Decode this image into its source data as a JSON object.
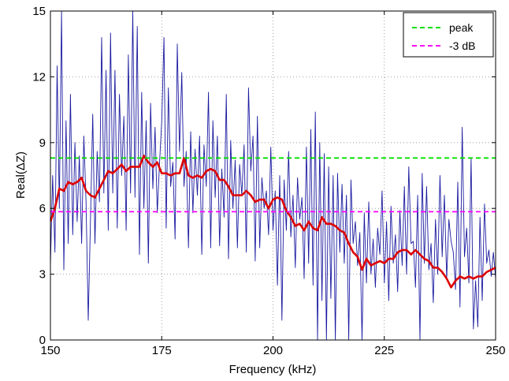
{
  "chart_data": {
    "type": "line",
    "title": "",
    "xlabel": "Frequency (kHz)",
    "ylabel": "Real(ΔZ)",
    "xlim": [
      150,
      250
    ],
    "ylim": [
      0,
      15
    ],
    "xticks": [
      150,
      175,
      200,
      225,
      250
    ],
    "yticks": [
      0,
      3,
      6,
      9,
      12,
      15
    ],
    "xtick_labels": [
      "150",
      "175",
      "200",
      "225",
      "250"
    ],
    "ytick_labels": [
      "0",
      "3",
      "6",
      "9",
      "12",
      "15"
    ],
    "grid": true,
    "legend_position": "top-right",
    "legend": [
      {
        "label": "peak",
        "color": "#00e000",
        "style": "dashed"
      },
      {
        "label": "-3 dB",
        "color": "#ff00ff",
        "style": "dashed"
      }
    ],
    "series": [
      {
        "role": "raw",
        "color": "#1a1aa0",
        "x": [
          150.0,
          150.5,
          151.0,
          151.5,
          152.0,
          152.5,
          153.0,
          153.5,
          154.0,
          154.5,
          155.0,
          155.5,
          156.0,
          156.5,
          157.0,
          157.5,
          158.0,
          158.5,
          159.0,
          159.5,
          160.0,
          160.5,
          161.0,
          161.5,
          162.0,
          162.5,
          163.0,
          163.5,
          164.0,
          164.5,
          165.0,
          165.5,
          166.0,
          166.5,
          167.0,
          167.5,
          168.0,
          168.5,
          169.0,
          169.5,
          170.0,
          170.5,
          171.0,
          171.5,
          172.0,
          172.5,
          173.0,
          173.5,
          174.0,
          174.5,
          175.0,
          175.5,
          176.0,
          176.5,
          177.0,
          177.5,
          178.0,
          178.5,
          179.0,
          179.5,
          180.0,
          180.5,
          181.0,
          181.5,
          182.0,
          182.5,
          183.0,
          183.5,
          184.0,
          184.5,
          185.0,
          185.5,
          186.0,
          186.5,
          187.0,
          187.5,
          188.0,
          188.5,
          189.0,
          189.5,
          190.0,
          190.5,
          191.0,
          191.5,
          192.0,
          192.5,
          193.0,
          193.5,
          194.0,
          194.5,
          195.0,
          195.5,
          196.0,
          196.5,
          197.0,
          197.5,
          198.0,
          198.5,
          199.0,
          199.5,
          200.0,
          200.5,
          201.0,
          201.5,
          202.0,
          202.5,
          203.0,
          203.5,
          204.0,
          204.5,
          205.0,
          205.5,
          206.0,
          206.5,
          207.0,
          207.5,
          208.0,
          208.5,
          209.0,
          209.5,
          210.0,
          210.5,
          211.0,
          211.5,
          212.0,
          212.5,
          213.0,
          213.5,
          214.0,
          214.5,
          215.0,
          215.5,
          216.0,
          216.5,
          217.0,
          217.5,
          218.0,
          218.5,
          219.0,
          219.5,
          220.0,
          220.5,
          221.0,
          221.5,
          222.0,
          222.5,
          223.0,
          223.5,
          224.0,
          224.5,
          225.0,
          225.5,
          226.0,
          226.5,
          227.0,
          227.5,
          228.0,
          228.5,
          229.0,
          229.5,
          230.0,
          230.5,
          231.0,
          231.5,
          232.0,
          232.5,
          233.0,
          233.5,
          234.0,
          234.5,
          235.0,
          235.5,
          236.0,
          236.5,
          237.0,
          237.5,
          238.0,
          238.5,
          239.0,
          239.5,
          240.0,
          240.5,
          241.0,
          241.5,
          242.0,
          242.5,
          243.0,
          243.5,
          244.0,
          244.5,
          245.0,
          245.5,
          246.0,
          246.5,
          247.0,
          247.5,
          248.0,
          248.5,
          249.0,
          249.5,
          250.0
        ],
        "y": [
          3.4,
          7.5,
          4.0,
          12.5,
          6.0,
          15.0,
          3.2,
          10.0,
          4.4,
          11.2,
          4.8,
          9.0,
          5.4,
          8.4,
          4.4,
          9.3,
          6.3,
          0.9,
          5.4,
          10.3,
          4.4,
          8.6,
          6.3,
          13.8,
          6.7,
          12.3,
          5.0,
          14.0,
          6.7,
          12.3,
          5.1,
          11.2,
          7.5,
          10.2,
          5.0,
          13.0,
          6.7,
          15.0,
          6.5,
          14.3,
          3.9,
          11.3,
          6.0,
          10.0,
          3.5,
          10.8,
          6.9,
          9.7,
          5.8,
          8.0,
          10.0,
          13.8,
          5.1,
          11.5,
          7.0,
          8.1,
          4.6,
          13.5,
          8.6,
          12.2,
          7.0,
          8.6,
          4.2,
          9.5,
          5.8,
          8.7,
          6.6,
          9.3,
          3.9,
          8.9,
          7.0,
          11.3,
          4.2,
          10.0,
          6.5,
          9.3,
          4.3,
          7.8,
          5.6,
          11.2,
          3.7,
          9.1,
          6.0,
          8.2,
          4.2,
          8.0,
          6.6,
          8.9,
          4.0,
          11.5,
          7.7,
          9.3,
          3.6,
          10.2,
          4.2,
          7.4,
          6.0,
          6.8,
          4.8,
          8.8,
          5.0,
          6.8,
          2.5,
          7.5,
          0.9,
          7.3,
          5.0,
          8.6,
          4.7,
          6.6,
          3.3,
          7.4,
          5.5,
          6.5,
          2.8,
          8.8,
          3.5,
          9.6,
          2.5,
          10.4,
          0.0,
          9.0,
          1.8,
          8.5,
          0.0,
          7.9,
          1.9,
          7.5,
          0.0,
          7.6,
          4.0,
          7.1,
          3.5,
          6.6,
          0.0,
          7.3,
          4.4,
          5.4,
          3.4,
          4.9,
          0.0,
          5.8,
          2.6,
          6.3,
          3.0,
          4.6,
          2.4,
          5.1,
          3.9,
          6.8,
          2.6,
          5.4,
          1.8,
          6.1,
          3.5,
          4.8,
          2.2,
          5.9,
          3.4,
          7.0,
          3.0,
          7.9,
          4.4,
          4.5,
          2.4,
          6.6,
          0.0,
          7.6,
          3.5,
          7.0,
          3.2,
          4.4,
          1.7,
          5.5,
          3.0,
          7.5,
          3.8,
          6.6,
          2.8,
          5.5,
          4.5,
          4.0,
          2.3,
          7.2,
          1.5,
          9.7,
          3.8,
          5.1,
          2.6,
          8.3,
          0.5,
          2.7,
          0.6,
          5.6,
          1.8,
          6.2,
          3.5,
          4.1,
          2.9,
          4.0,
          2.8
        ],
        "visible_shown": true
      },
      {
        "role": "smoothed",
        "color": "#dd0000",
        "x": [
          150,
          151,
          152,
          153,
          154,
          155,
          156,
          157,
          158,
          159,
          160,
          161,
          162,
          163,
          164,
          165,
          166,
          167,
          168,
          169,
          170,
          171,
          172,
          173,
          174,
          175,
          176,
          177,
          178,
          179,
          180,
          181,
          182,
          183,
          184,
          185,
          186,
          187,
          188,
          189,
          190,
          191,
          192,
          193,
          194,
          195,
          196,
          197,
          198,
          199,
          200,
          201,
          202,
          203,
          204,
          205,
          206,
          207,
          208,
          209,
          210,
          211,
          212,
          213,
          214,
          215,
          216,
          217,
          218,
          219,
          220,
          221,
          222,
          223,
          224,
          225,
          226,
          227,
          228,
          229,
          230,
          231,
          232,
          233,
          234,
          235,
          236,
          237,
          238,
          239,
          240,
          241,
          242,
          243,
          244,
          245,
          246,
          247,
          248,
          249,
          250
        ],
        "y": [
          5.4,
          6.0,
          6.9,
          6.8,
          7.2,
          7.1,
          7.2,
          7.4,
          6.8,
          6.6,
          6.5,
          6.9,
          7.3,
          7.7,
          7.6,
          7.8,
          8.0,
          7.7,
          7.9,
          7.9,
          7.9,
          8.4,
          8.1,
          7.9,
          8.1,
          7.6,
          7.6,
          7.5,
          7.6,
          7.6,
          8.3,
          7.5,
          7.4,
          7.5,
          7.4,
          7.7,
          7.8,
          7.7,
          7.3,
          7.3,
          7.0,
          6.6,
          6.6,
          6.6,
          6.8,
          6.6,
          6.3,
          6.4,
          6.4,
          6.0,
          6.4,
          6.5,
          6.4,
          5.9,
          5.6,
          5.2,
          5.3,
          5.0,
          5.4,
          5.1,
          5.0,
          5.6,
          5.3,
          5.3,
          5.2,
          5.0,
          4.9,
          4.4,
          4.0,
          3.8,
          3.2,
          3.7,
          3.4,
          3.5,
          3.6,
          3.5,
          3.7,
          3.7,
          4.0,
          4.1,
          4.1,
          3.9,
          4.1,
          3.9,
          3.7,
          3.6,
          3.3,
          3.3,
          3.1,
          2.8,
          2.4,
          2.7,
          2.9,
          2.8,
          2.9,
          2.8,
          2.9,
          2.9,
          3.1,
          3.2,
          3.3
        ],
        "visible_shown": true
      },
      {
        "role": "reference",
        "name": "peak",
        "color": "#00e000",
        "x": [
          150,
          250
        ],
        "y": [
          8.3,
          8.3
        ]
      },
      {
        "role": "reference",
        "name": "-3 dB",
        "color": "#ff00ff",
        "x": [
          150,
          250
        ],
        "y": [
          5.85,
          5.85
        ]
      }
    ]
  }
}
